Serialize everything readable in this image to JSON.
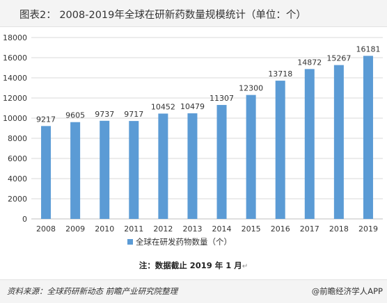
{
  "header": {
    "title": "图表2：  2008-2019年全球在研新药数量规模统计（单位：个）"
  },
  "chart_data": {
    "type": "bar",
    "categories": [
      "2008",
      "2009",
      "2010",
      "2011",
      "2012",
      "2013",
      "2014",
      "2015",
      "2016",
      "2017",
      "2018",
      "2019"
    ],
    "series": [
      {
        "name": "全球在研发药物数量（个）",
        "values": [
          9217,
          9605,
          9737,
          9717,
          10452,
          10479,
          11307,
          12300,
          13718,
          14872,
          15267,
          16181
        ]
      }
    ],
    "y_ticks": [
      "0",
      "2000",
      "4000",
      "6000",
      "8000",
      "10000",
      "12000",
      "14000",
      "16000",
      "18000"
    ],
    "ylim": [
      0,
      18000
    ],
    "grid": true,
    "legend_position": "bottom",
    "bar_color": "#5b9bd5",
    "gridline_color": "#d9d9d9"
  },
  "note": {
    "text": "注：数据截止 2019 年 1 月",
    "mark": "↵"
  },
  "footer": {
    "source": "资料来源：全球药研新动态  前瞻产业研究院整理",
    "brand": "@前瞻经济学人APP"
  }
}
